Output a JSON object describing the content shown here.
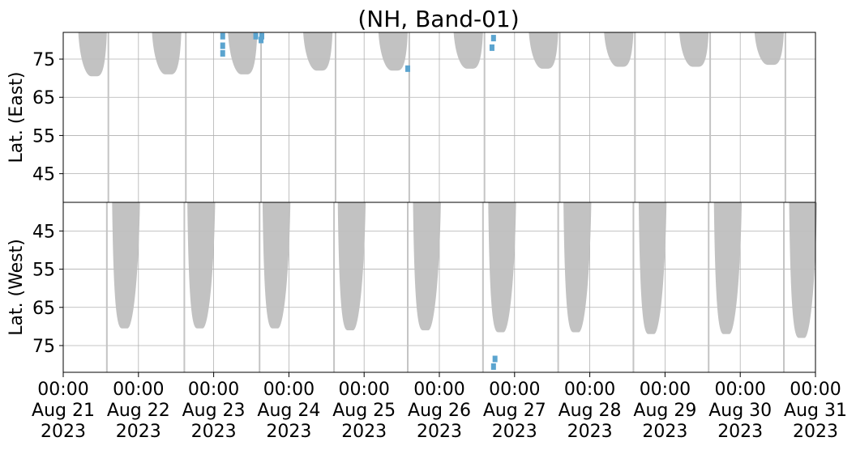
{
  "chart_data": {
    "type": "heatmap",
    "title": "(NH, Band-01)",
    "grid": true,
    "x_dates": [
      [
        "00:00",
        "Aug 21",
        "2023"
      ],
      [
        "00:00",
        "Aug 22",
        "2023"
      ],
      [
        "00:00",
        "Aug 23",
        "2023"
      ],
      [
        "00:00",
        "Aug 24",
        "2023"
      ],
      [
        "00:00",
        "Aug 25",
        "2023"
      ],
      [
        "00:00",
        "Aug 26",
        "2023"
      ],
      [
        "00:00",
        "Aug 27",
        "2023"
      ],
      [
        "00:00",
        "Aug 28",
        "2023"
      ],
      [
        "00:00",
        "Aug 29",
        "2023"
      ],
      [
        "00:00",
        "Aug 30",
        "2023"
      ],
      [
        "00:00",
        "Aug 31",
        "2023"
      ]
    ],
    "xlim_days": [
      0,
      10
    ],
    "panels": [
      {
        "name": "east",
        "ylabel": "Lat. (East)",
        "yticks": [
          "45",
          "55",
          "65",
          "75"
        ],
        "ytick_values": [
          45,
          55,
          65,
          75
        ],
        "ylim": [
          37.5,
          82
        ],
        "inverted": false,
        "coverage_color": "#bfbfbf",
        "arches": [
          {
            "start": 0.2,
            "end": 0.58,
            "min_lat": 70.5
          },
          {
            "start": 1.18,
            "end": 1.57,
            "min_lat": 71.0
          },
          {
            "start": 2.19,
            "end": 2.58,
            "min_lat": 71.0
          },
          {
            "start": 3.19,
            "end": 3.58,
            "min_lat": 72.0
          },
          {
            "start": 4.19,
            "end": 4.58,
            "min_lat": 72.0
          },
          {
            "start": 5.19,
            "end": 5.58,
            "min_lat": 72.5
          },
          {
            "start": 6.19,
            "end": 6.58,
            "min_lat": 72.5
          },
          {
            "start": 7.19,
            "end": 7.58,
            "min_lat": 73.0
          },
          {
            "start": 8.19,
            "end": 8.58,
            "min_lat": 73.0
          },
          {
            "start": 9.19,
            "end": 9.58,
            "min_lat": 73.5
          }
        ]
      },
      {
        "name": "west",
        "ylabel": "Lat. (West)",
        "yticks": [
          "75",
          "65",
          "55",
          "45"
        ],
        "ytick_values": [
          75,
          65,
          55,
          45
        ],
        "ylim": [
          82,
          37.5
        ],
        "inverted": true,
        "coverage_color": "#bfbfbf",
        "arches": [
          {
            "start": 0.65,
            "end": 1.02,
            "min_lat": 70.5
          },
          {
            "start": 1.65,
            "end": 2.02,
            "min_lat": 70.5
          },
          {
            "start": 2.65,
            "end": 3.02,
            "min_lat": 70.5
          },
          {
            "start": 3.65,
            "end": 4.02,
            "min_lat": 71.0
          },
          {
            "start": 4.65,
            "end": 5.02,
            "min_lat": 71.0
          },
          {
            "start": 5.65,
            "end": 6.02,
            "min_lat": 71.5
          },
          {
            "start": 6.65,
            "end": 7.02,
            "min_lat": 71.5
          },
          {
            "start": 7.65,
            "end": 8.02,
            "min_lat": 72.0
          },
          {
            "start": 8.65,
            "end": 9.02,
            "min_lat": 72.0
          },
          {
            "start": 9.65,
            "end": 10.02,
            "min_lat": 73.0
          }
        ]
      }
    ],
    "scan_lines_days": [
      0.6,
      1.63,
      2.63,
      3.62,
      4.6,
      5.6,
      6.6,
      7.6,
      8.6,
      9.6
    ],
    "detections": [
      {
        "panel": "east",
        "day": 2.12,
        "lat": 76.5
      },
      {
        "panel": "east",
        "day": 2.12,
        "lat": 78.5
      },
      {
        "panel": "east",
        "day": 2.12,
        "lat": 81.0
      },
      {
        "panel": "east",
        "day": 2.56,
        "lat": 81.0
      },
      {
        "panel": "east",
        "day": 2.64,
        "lat": 81.0
      },
      {
        "panel": "east",
        "day": 2.63,
        "lat": 80.0
      },
      {
        "panel": "east",
        "day": 4.58,
        "lat": 72.5
      },
      {
        "panel": "east",
        "day": 5.7,
        "lat": 78.0
      },
      {
        "panel": "east",
        "day": 5.72,
        "lat": 80.5
      },
      {
        "panel": "west",
        "day": 5.72,
        "lat": 80.5
      },
      {
        "panel": "west",
        "day": 5.74,
        "lat": 78.5
      }
    ],
    "detection_color": "#5ba4cf"
  }
}
